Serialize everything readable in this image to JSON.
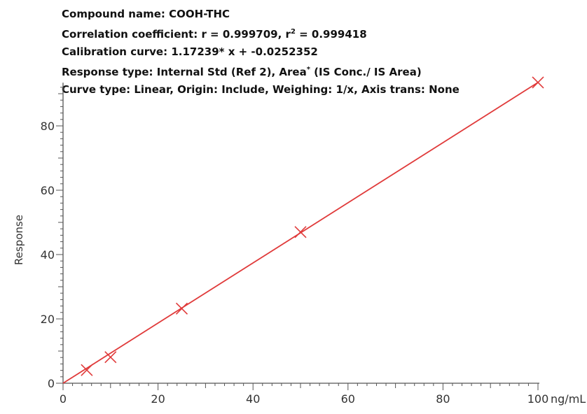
{
  "header": {
    "compound": "Compound name: COOH-THC",
    "correlation_prefix": "Correlation coefficient: r = 0.999709, r",
    "correlation_sup": "2",
    "correlation_suffix": " = 0.999418",
    "calibration": "Calibration curve: 1.17239* x + -0.0252352",
    "response_prefix": "Response type: Internal Std (Ref 2), Area",
    "response_sup": "*",
    "response_suffix": " (IS Conc./ IS Area)",
    "curve_type": "Curve type: Linear, Origin: Include, Weighing: 1/x, Axis trans: None"
  },
  "chart_data": {
    "type": "scatter",
    "xlabel": "ng/mL",
    "ylabel": "Response",
    "xlim": [
      0,
      100
    ],
    "ylim": [
      0,
      93
    ],
    "x_ticks": [
      0,
      20,
      40,
      60,
      80,
      100
    ],
    "y_ticks": [
      0,
      20,
      40,
      60,
      80
    ],
    "grid": false,
    "fit_line": {
      "slope": 1.17239,
      "intercept": -0.0252352
    },
    "points": [
      {
        "x": 5,
        "y": 4.1
      },
      {
        "x": 10,
        "y": 8.1
      },
      {
        "x": 25,
        "y": 23.2
      },
      {
        "x": 50,
        "y": 47.0
      },
      {
        "x": 100,
        "y": 93.5
      }
    ],
    "colors": {
      "series": "#e03a3a",
      "axis": "#555555"
    }
  }
}
